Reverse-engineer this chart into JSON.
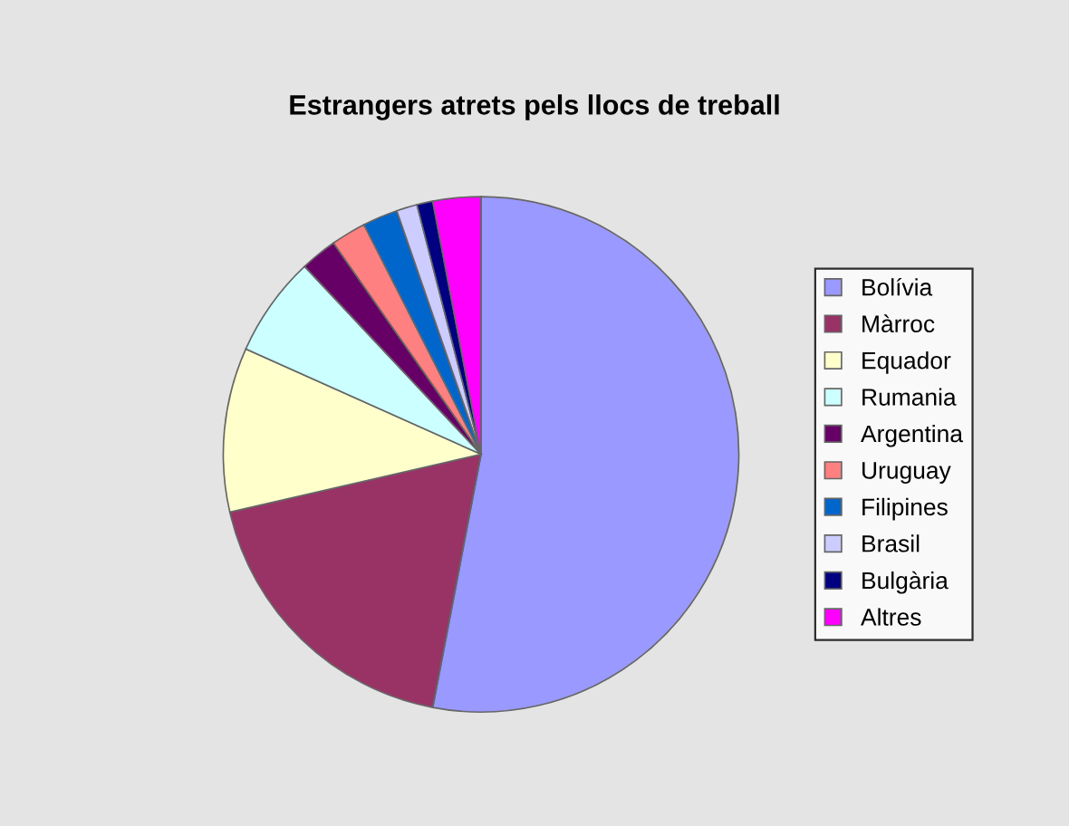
{
  "chart_data": {
    "type": "pie",
    "title": "Estrangers atrets pels llocs de treball",
    "categories": [
      "Bolívia",
      "Màrroc",
      "Equador",
      "Rumania",
      "Argentina",
      "Uruguay",
      "Filipines",
      "Brasil",
      "Bulgària",
      "Altres"
    ],
    "values": [
      53,
      18.4,
      10.3,
      6.3,
      2.3,
      2.2,
      2.2,
      1.3,
      1.0,
      3.0
    ],
    "colors": [
      "#9999ff",
      "#993366",
      "#ffffcc",
      "#ccffff",
      "#660066",
      "#ff8080",
      "#0066cc",
      "#ccccff",
      "#000080",
      "#ff00ff"
    ],
    "legend": "right"
  }
}
